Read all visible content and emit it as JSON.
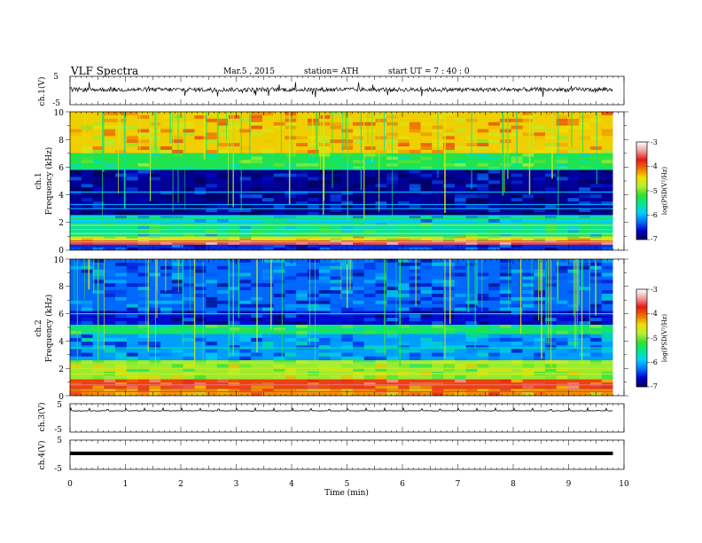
{
  "header": {
    "title": "VLF  Spectra",
    "date": "Mar.5  , 2015",
    "station": "station= ATH",
    "start_ut": "start  UT  =   7 : 40 : 0"
  },
  "chart_data": [
    {
      "type": "line",
      "panel": "ch1-waveform",
      "ylabel": "ch.1(V)",
      "ylim": [
        -5,
        5
      ],
      "yticks": [
        "5",
        "-5"
      ],
      "xlim": [
        0,
        10
      ],
      "trace": "noisy waveform centred near 0 V, amplitude about 1 V, frequent spikes to about ±3 V",
      "trace_color": "#000000"
    },
    {
      "type": "heatmap",
      "panel": "ch1-spectrogram",
      "ylabel_top": "ch.1",
      "ylabel": "Frequency  (kHz)",
      "ylim": [
        0,
        10
      ],
      "yticks": [
        "0",
        "2",
        "4",
        "6",
        "8",
        "10"
      ],
      "xlim": [
        0,
        10
      ],
      "x_data_end_min": 9.8,
      "colorbar": {
        "label": "log(PSD(V²/Hz)",
        "range": [
          -7,
          -3
        ],
        "ticks": [
          "-3",
          "-4",
          "-5",
          "-6",
          "-7"
        ],
        "colors": [
          "#000050",
          "#0000cc",
          "#0070ff",
          "#00d0ff",
          "#00e890",
          "#30e030",
          "#b8f030",
          "#f0e000",
          "#f07000",
          "#e81818",
          "#f0a0a0",
          "#ffffff"
        ]
      },
      "bands": [
        {
          "f_min": 0,
          "f_max": 0.4,
          "logPSD": -6.5
        },
        {
          "f_min": 0.4,
          "f_max": 0.7,
          "logPSD": -3.6
        },
        {
          "f_min": 0.7,
          "f_max": 1.0,
          "logPSD": -4.6
        },
        {
          "f_min": 1.0,
          "f_max": 2.0,
          "logPSD": -5.6
        },
        {
          "f_min": 2.0,
          "f_max": 2.5,
          "logPSD": -5.9
        },
        {
          "f_min": 2.5,
          "f_max": 5.8,
          "logPSD": -6.8
        },
        {
          "f_min": 5.8,
          "f_max": 7.0,
          "logPSD": -5.3
        },
        {
          "f_min": 7.0,
          "f_max": 10.0,
          "logPSD": -4.4
        }
      ],
      "lines_khz": [
        0.6,
        1.2,
        1.5,
        1.8,
        2.3,
        2.5,
        3.0,
        3.3,
        4.2,
        5.9
      ],
      "line_logPSD": [
        -3.4,
        -4.8,
        -5.0,
        -4.8,
        -5.2,
        -5.5,
        -6.0,
        -6.1,
        -6.0,
        -5.6
      ],
      "sferics_approx_count": 60
    },
    {
      "type": "heatmap",
      "panel": "ch2-spectrogram",
      "ylabel_top": "ch.2",
      "ylabel": "Frequency  (kHz)",
      "ylim": [
        0,
        10
      ],
      "yticks": [
        "0",
        "2",
        "4",
        "6",
        "8",
        "10"
      ],
      "xlim": [
        0,
        10
      ],
      "x_data_end_min": 9.8,
      "colorbar": {
        "label": "log(PSD(V²/Hz)",
        "range": [
          -7,
          -3
        ],
        "ticks": [
          "-3",
          "-4",
          "-5",
          "-6",
          "-7"
        ]
      },
      "bands": [
        {
          "f_min": 0,
          "f_max": 0.5,
          "logPSD": -4.2
        },
        {
          "f_min": 0.5,
          "f_max": 1.2,
          "logPSD": -3.9
        },
        {
          "f_min": 1.2,
          "f_max": 2.6,
          "logPSD": -4.9
        },
        {
          "f_min": 2.6,
          "f_max": 4.5,
          "logPSD": -6.1
        },
        {
          "f_min": 4.5,
          "f_max": 5.2,
          "logPSD": -5.4
        },
        {
          "f_min": 5.2,
          "f_max": 6.2,
          "logPSD": -6.6
        },
        {
          "f_min": 6.2,
          "f_max": 10.0,
          "logPSD": -6.3
        }
      ],
      "lines_khz": [
        0.3,
        0.8,
        1.6,
        2.0,
        2.4,
        3.5,
        4.8,
        6.0
      ],
      "line_logPSD": [
        -3.6,
        -3.5,
        -4.6,
        -4.7,
        -4.8,
        -5.6,
        -5.3,
        -5.8
      ],
      "sferics_approx_count": 60
    },
    {
      "type": "line",
      "panel": "ch3-waveform",
      "ylabel": "ch.3(V)",
      "ylim": [
        -5,
        5
      ],
      "yticks": [
        "5",
        "-5"
      ],
      "xlim": [
        0,
        10
      ],
      "trace": "baseline near 0 V with small periodic bumps about every 20 s",
      "trace_color": "#000000"
    },
    {
      "type": "line",
      "panel": "ch4-waveform",
      "ylabel": "ch.4(V)",
      "ylim": [
        -5,
        5
      ],
      "yticks": [
        "5",
        "-5"
      ],
      "xlim": [
        0,
        10
      ],
      "trace": "thick band near 0 V",
      "trace_color": "#000000"
    }
  ],
  "xaxis": {
    "label": "Time  (min)",
    "ticks": [
      "0",
      "1",
      "2",
      "3",
      "4",
      "5",
      "6",
      "7",
      "8",
      "9",
      "10"
    ]
  }
}
